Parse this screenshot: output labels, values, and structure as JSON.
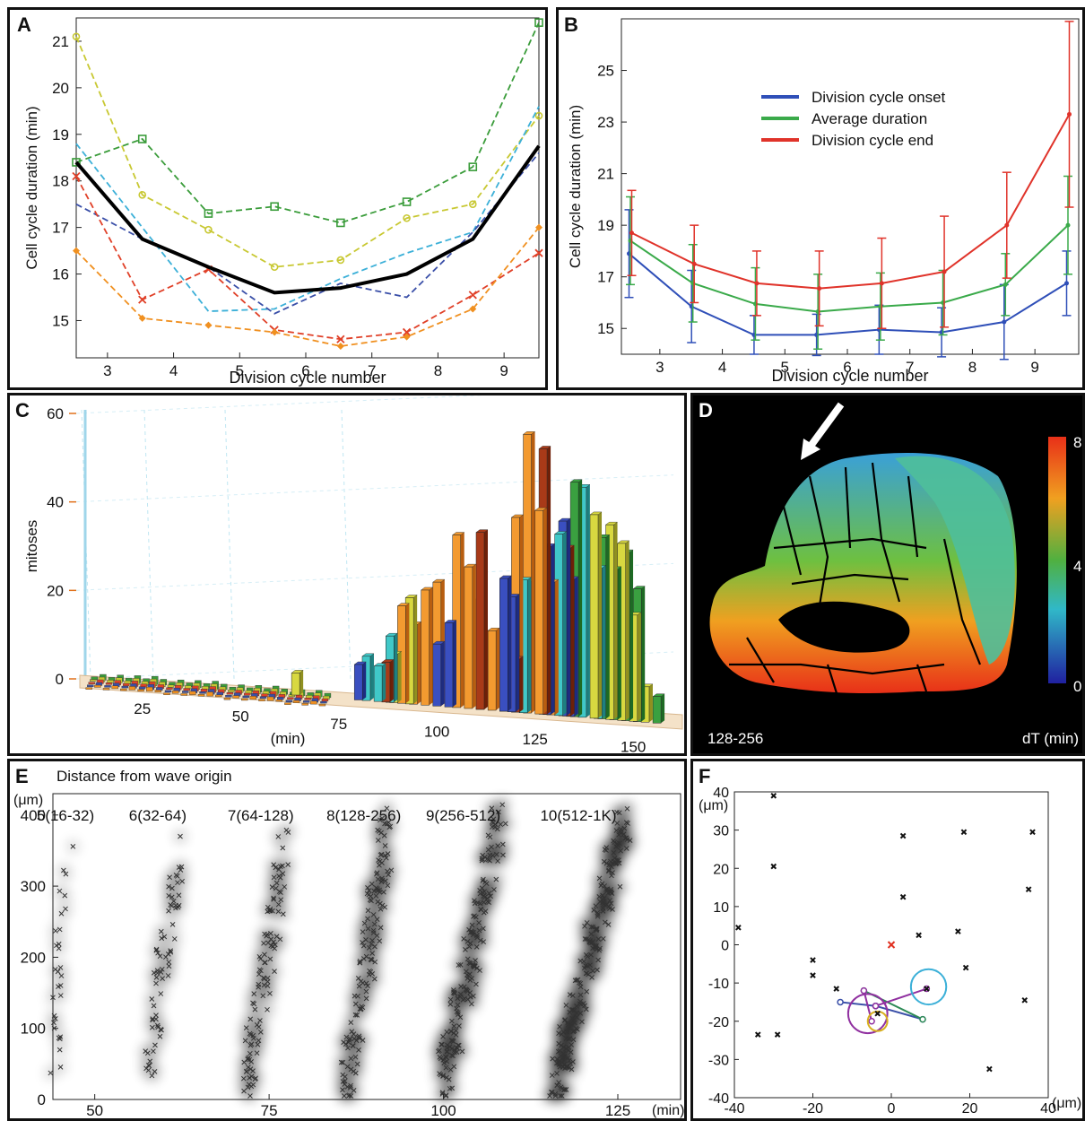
{
  "panels": {
    "A": {
      "letter": "A"
    },
    "B": {
      "letter": "B"
    },
    "C": {
      "letter": "C"
    },
    "D": {
      "letter": "D",
      "range_label": "128-256",
      "colorbar_label": "dT (min)",
      "colorbar_ticks": [
        "8",
        "4",
        "0"
      ]
    },
    "E": {
      "letter": "E",
      "title": "Distance from wave origin"
    },
    "F": {
      "letter": "F"
    }
  },
  "colors": {
    "green": "#3a9c3a",
    "yellow": "#c8c832",
    "cyan": "#3cb0d8",
    "navy": "#3a4fa8",
    "red": "#e04028",
    "orange": "#f09020",
    "black": "#000000",
    "onset": "#2f4fb8",
    "average": "#3aaa4a",
    "end": "#e0332a"
  },
  "chart_data": [
    {
      "panel": "A",
      "type": "line",
      "xlabel": "Division cycle number",
      "ylabel": "Cell cycle duration (min)",
      "x": [
        2.5,
        3.5,
        4.5,
        5.5,
        6.5,
        7.5,
        8.5,
        9.5
      ],
      "xlim": [
        2.5,
        9.5
      ],
      "ylim": [
        14.2,
        21.5
      ],
      "xticks": [
        3,
        4,
        5,
        6,
        7,
        8,
        9
      ],
      "yticks": [
        15,
        16,
        17,
        18,
        19,
        20,
        21
      ],
      "series": [
        {
          "color": "green",
          "dashed": true,
          "marker": "square",
          "values": [
            18.4,
            18.9,
            17.3,
            17.45,
            17.1,
            17.55,
            18.3,
            21.4
          ]
        },
        {
          "color": "yellow",
          "dashed": true,
          "marker": "circle",
          "values": [
            21.1,
            17.7,
            16.95,
            16.15,
            16.3,
            17.2,
            17.5,
            19.4
          ]
        },
        {
          "color": "cyan",
          "dashed": true,
          "marker": "none",
          "values": [
            18.8,
            17.0,
            15.2,
            15.25,
            15.9,
            16.45,
            16.9,
            19.6
          ]
        },
        {
          "color": "navy",
          "dashed": true,
          "marker": "none",
          "values": [
            17.5,
            16.75,
            16.15,
            15.15,
            15.8,
            15.5,
            16.9,
            18.6
          ]
        },
        {
          "color": "red",
          "dashed": true,
          "marker": "plus",
          "values": [
            18.1,
            15.45,
            16.1,
            14.8,
            14.6,
            14.75,
            15.55,
            16.45
          ]
        },
        {
          "color": "orange",
          "dashed": true,
          "marker": "diamond",
          "values": [
            16.5,
            15.05,
            14.9,
            14.75,
            14.45,
            14.65,
            15.25,
            17.0
          ]
        },
        {
          "color": "black",
          "dashed": false,
          "marker": "none",
          "values": [
            18.4,
            16.75,
            16.15,
            15.6,
            15.7,
            16.0,
            16.75,
            18.75
          ]
        }
      ]
    },
    {
      "panel": "B",
      "type": "line",
      "xlabel": "Division cycle number",
      "ylabel": "Cell cycle duration (min)",
      "x": [
        2.5,
        3.5,
        4.5,
        5.5,
        6.5,
        7.5,
        8.5,
        9.5
      ],
      "xlim": [
        2.5,
        9.5
      ],
      "ylim": [
        14.0,
        27.0
      ],
      "xticks": [
        3,
        4,
        5,
        6,
        7,
        8,
        9
      ],
      "yticks": [
        15,
        17,
        19,
        21,
        23,
        25
      ],
      "legend": [
        "Division cycle onset",
        "Average duration",
        "Division cycle end"
      ],
      "series": [
        {
          "name": "Division cycle onset",
          "color": "onset",
          "values": [
            17.9,
            15.85,
            14.75,
            14.75,
            14.95,
            14.85,
            15.25,
            16.75
          ],
          "err": [
            1.7,
            1.4,
            0.75,
            0.8,
            0.95,
            0.95,
            1.45,
            1.25
          ]
        },
        {
          "name": "Average duration",
          "color": "average",
          "values": [
            18.4,
            16.75,
            15.95,
            15.65,
            15.85,
            16.0,
            16.7,
            19.0
          ],
          "err": [
            1.7,
            1.5,
            1.4,
            1.45,
            1.3,
            1.25,
            1.2,
            1.9
          ]
        },
        {
          "name": "Division cycle end",
          "color": "end",
          "values": [
            18.7,
            17.5,
            16.75,
            16.55,
            16.75,
            17.2,
            19.0,
            23.3
          ],
          "err": [
            1.65,
            1.5,
            1.25,
            1.45,
            1.75,
            2.15,
            2.05,
            3.6
          ]
        }
      ]
    },
    {
      "panel": "C",
      "type": "bar",
      "ylabel": "mitoses",
      "x_unit_label": "(min)",
      "yticks": [
        0,
        20,
        40,
        60
      ],
      "xticks": [
        25,
        50,
        75,
        100,
        125,
        150
      ],
      "ylim": [
        0,
        60
      ],
      "series": [
        {
          "color": "orange",
          "x": [
            90,
            93,
            96,
            99,
            104,
            107,
            110,
            113,
            116,
            119,
            122,
            125,
            128
          ],
          "values": [
            22,
            18,
            26,
            28,
            39,
            32,
            25,
            18,
            30,
            44,
            63,
            46,
            30
          ]
        },
        {
          "color": "darkred",
          "x": [
            86,
            110,
            119,
            126,
            132
          ],
          "values": [
            9,
            40,
            12,
            60,
            38
          ]
        },
        {
          "color": "blue",
          "x": [
            79,
            99,
            102,
            116,
            118,
            121,
            127,
            131,
            133
          ],
          "values": [
            8,
            14,
            19,
            30,
            26,
            29,
            38,
            44,
            31
          ]
        },
        {
          "color": "teal",
          "x": [
            81,
            84,
            87,
            121,
            130,
            136,
            140
          ],
          "values": [
            10,
            8,
            15,
            30,
            41,
            52,
            34
          ]
        },
        {
          "color": "yellow",
          "x": [
            63,
            88,
            92,
            139,
            143,
            146,
            149,
            152
          ],
          "values": [
            5,
            11,
            24,
            46,
            44,
            40,
            24,
            8
          ]
        },
        {
          "color": "green",
          "x": [
            134,
            141,
            144,
            147,
            150,
            155
          ],
          "values": [
            53,
            41,
            34,
            38,
            30,
            6
          ]
        }
      ]
    },
    {
      "panel": "E",
      "type": "scatter",
      "title": "Distance from wave origin",
      "ylabel": "(μm)",
      "x_unit_label": "(min)",
      "xlim": [
        44,
        134
      ],
      "ylim": [
        0,
        430
      ],
      "xticks": [
        50,
        75,
        100,
        125
      ],
      "yticks": [
        0,
        100,
        200,
        300,
        400
      ],
      "group_labels": [
        "5(16-32)",
        "6(32-64)",
        "7(64-128)",
        "8(128-256)",
        "9(256-512)",
        "10(512-1K)"
      ],
      "groups": [
        {
          "label": "5(16-32)",
          "x_start": 44,
          "x_end": 46,
          "y_start": 40,
          "y_end": 340
        },
        {
          "label": "6(32-64)",
          "x_start": 58,
          "x_end": 62,
          "y_start": 40,
          "y_end": 350
        },
        {
          "label": "7(64-128)",
          "x_start": 72,
          "x_end": 77,
          "y_start": 20,
          "y_end": 360
        },
        {
          "label": "8(128-256)",
          "x_start": 86,
          "x_end": 92,
          "y_start": 20,
          "y_end": 380
        },
        {
          "label": "9(256-512)",
          "x_start": 100,
          "x_end": 108,
          "y_start": 20,
          "y_end": 390
        },
        {
          "label": "10(512-1K)",
          "x_start": 116,
          "x_end": 126,
          "y_start": 10,
          "y_end": 400
        }
      ]
    },
    {
      "panel": "F",
      "type": "scatter",
      "xlabel": "(μm)",
      "ylabel": "(μm)",
      "xlim": [
        -40,
        40
      ],
      "ylim": [
        -40,
        40
      ],
      "xticks": [
        -40,
        -20,
        0,
        20,
        40
      ],
      "yticks": [
        -40,
        -30,
        -20,
        -10,
        0,
        10,
        20,
        30,
        40
      ],
      "points": [
        [
          -30,
          39
        ],
        [
          -30,
          20.5
        ],
        [
          -39,
          4.5
        ],
        [
          -20,
          -4
        ],
        [
          -20,
          -8
        ],
        [
          -14,
          -11.5
        ],
        [
          -34,
          -23.5
        ],
        [
          -29,
          -23.5
        ],
        [
          3,
          28.5
        ],
        [
          3,
          12.5
        ],
        [
          7,
          2.5
        ],
        [
          17,
          3.5
        ],
        [
          18.5,
          29.5
        ],
        [
          36,
          29.5
        ],
        [
          35,
          14.5
        ],
        [
          19,
          -6
        ],
        [
          34,
          -14.5
        ],
        [
          25,
          -32.5
        ],
        [
          9,
          -11.5
        ],
        [
          -3.5,
          -18
        ]
      ],
      "origin": [
        0,
        0
      ],
      "origin_color": "#e03020",
      "lineage_lines": [
        {
          "color": "#3a4fa8",
          "from": [
            -13,
            -15
          ],
          "to": [
            -4,
            -16
          ]
        },
        {
          "color": "#3a4fa8",
          "from": [
            -4,
            -16
          ],
          "to": [
            8,
            -19.5
          ]
        },
        {
          "color": "#2e8b57",
          "from": [
            -7,
            -12
          ],
          "to": [
            8,
            -19.5
          ]
        },
        {
          "color": "#9030a0",
          "from": [
            -4,
            -16
          ],
          "to": [
            9,
            -11.5
          ]
        },
        {
          "color": "#9030a0",
          "from": [
            -7,
            -12
          ],
          "to": [
            -5,
            -20
          ]
        }
      ],
      "circles": [
        {
          "color": "#3cb0d8",
          "cx": 9.5,
          "cy": -11,
          "r": 4.5
        },
        {
          "color": "#9030a0",
          "cx": -6,
          "cy": -18,
          "r": 5
        },
        {
          "color": "#d8b020",
          "cx": -3.5,
          "cy": -20,
          "r": 2.5
        }
      ]
    }
  ]
}
